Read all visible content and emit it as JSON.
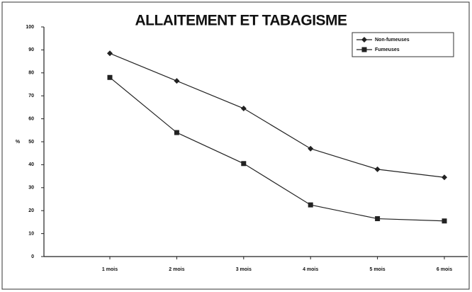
{
  "chart_data": {
    "type": "line",
    "title": "ALLAITEMENT ET TABAGISME",
    "y_label": "%",
    "categories": [
      "1 mois",
      "2 mois",
      "3 mois",
      "4 mois",
      "5 mois",
      "6 mois"
    ],
    "series": [
      {
        "name": "Non-fumeuses",
        "color": "#222222",
        "marker": "diamond",
        "values": [
          88.5,
          76.5,
          64.5,
          47,
          38,
          34.5
        ]
      },
      {
        "name": "Fumeuses",
        "color": "#222222",
        "marker": "square",
        "values": [
          78,
          54,
          40.5,
          22.5,
          16.5,
          15.5
        ]
      }
    ],
    "ylim": [
      0,
      100
    ],
    "yticks": [
      0,
      10,
      20,
      30,
      40,
      50,
      60,
      70,
      80,
      90,
      100
    ],
    "grid": false,
    "legend": "top-right"
  }
}
